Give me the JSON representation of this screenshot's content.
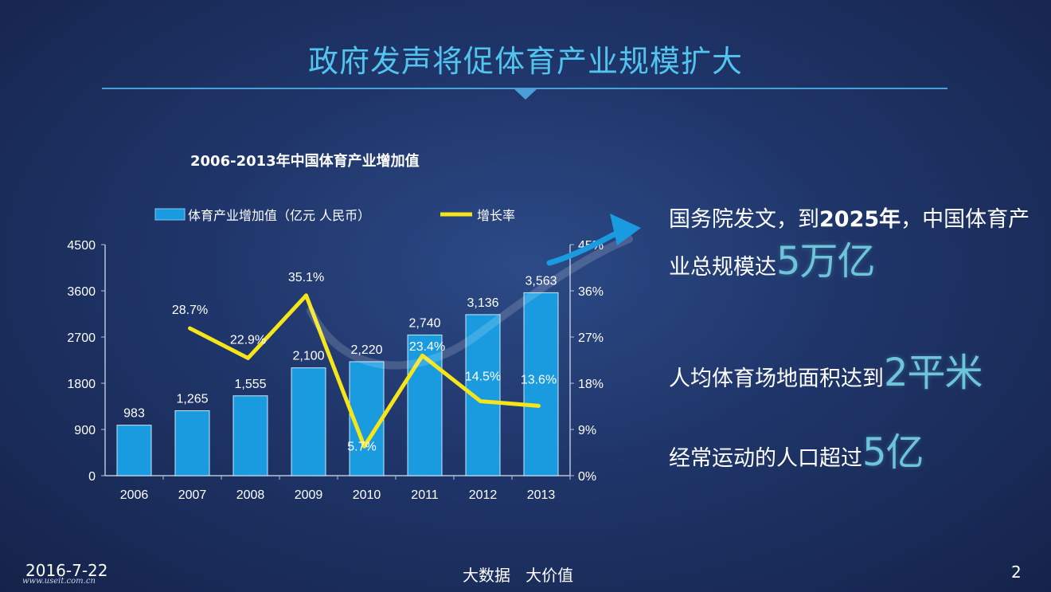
{
  "slide": {
    "title": "政府发声将促体育产业规模扩大"
  },
  "chart_data": {
    "type": "bar",
    "title": "2006-2013年中国体育产业增加值",
    "categories": [
      "2006",
      "2007",
      "2008",
      "2009",
      "2010",
      "2011",
      "2012",
      "2013"
    ],
    "series": [
      {
        "name": "体育产业增加值（亿元 人民币）",
        "type": "bar",
        "axis": "left",
        "values": [
          983,
          1265,
          1555,
          2100,
          2220,
          2740,
          3136,
          3563
        ],
        "labels": [
          "983",
          "1,265",
          "1,555",
          "2,100",
          "2,220",
          "2,740",
          "3,136",
          "3,563"
        ],
        "color": "#1a9be0"
      },
      {
        "name": "增长率",
        "type": "line",
        "axis": "right",
        "values": [
          null,
          28.7,
          22.9,
          35.1,
          5.7,
          23.4,
          14.5,
          13.6
        ],
        "labels": [
          "",
          "28.7%",
          "22.9%",
          "35.1%",
          "5.7%",
          "23.4%",
          "14.5%",
          "13.6%"
        ],
        "color": "#f5e51a"
      }
    ],
    "y_left": {
      "min": 0,
      "max": 4500,
      "ticks": [
        "0",
        "900",
        "1800",
        "2700",
        "3600",
        "4500"
      ]
    },
    "y_right": {
      "min": 0,
      "max": 45,
      "ticks": [
        "0%",
        "9%",
        "18%",
        "27%",
        "36%",
        "45%"
      ]
    },
    "legend_position": "top",
    "grid": false
  },
  "facts": {
    "line1_prefix": "国务院发文，到",
    "line1_bold": "2025年",
    "line1_suffix": "，中国体育产业总规模达",
    "line1_big": "5万亿",
    "line2_text": "人均体育场地面积达到",
    "line2_big": "2平米",
    "line3_text": "经常运动的人口超过",
    "line3_big": "5亿"
  },
  "footer": {
    "date": "2016-7-22",
    "url": "www.useit.com.cn",
    "center": "大数据   大价值",
    "page": "2"
  },
  "colors": {
    "title": "#52c4ee",
    "accent_line": "#4a9fd8",
    "bar": "#1a9be0",
    "growth_line": "#f5e51a",
    "highlight": "#6ec5d9"
  },
  "icons": {
    "arrow": "curved-arrow-icon"
  }
}
